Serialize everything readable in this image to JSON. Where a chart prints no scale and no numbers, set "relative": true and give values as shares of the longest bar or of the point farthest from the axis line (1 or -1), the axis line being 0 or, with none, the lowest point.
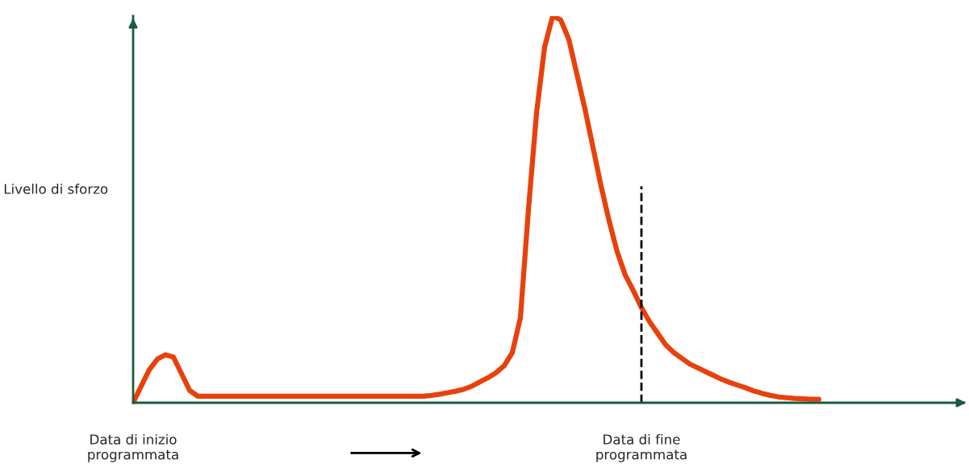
{
  "chart_data": {
    "type": "line",
    "relative": true,
    "ylabel": "Livello di sforzo",
    "categories": [
      "Data di inizio\nprogrammata",
      null,
      null,
      null,
      null,
      null,
      null,
      null,
      null,
      null,
      null,
      null,
      null,
      null,
      null,
      null,
      null,
      null,
      null,
      null,
      null,
      null,
      null,
      null,
      null,
      null,
      null,
      null,
      null,
      null,
      null,
      null,
      null,
      null,
      null,
      null,
      null,
      null,
      null,
      null,
      null,
      null,
      null,
      null,
      null,
      null,
      null,
      null,
      null,
      null,
      null,
      null,
      null,
      null,
      null,
      null,
      null,
      null,
      null,
      null,
      null,
      null,
      null,
      "Data di fine\nprogrammata",
      null,
      null,
      null,
      null,
      null,
      null,
      null,
      null,
      null,
      null,
      null,
      null,
      null,
      null,
      null,
      null,
      null,
      null,
      null,
      null,
      null,
      null,
      null,
      null,
      null,
      null,
      null,
      null,
      null,
      null,
      null,
      null,
      null,
      null,
      null,
      null,
      null,
      null,
      null,
      null
    ],
    "series": [
      {
        "color": "#e8410c",
        "values": [
          0,
          0.043,
          0.085,
          0.113,
          0.124,
          0.118,
          0.075,
          0.032,
          0.017,
          0.017,
          0.017,
          0.017,
          0.017,
          0.017,
          0.017,
          0.017,
          0.017,
          0.017,
          0.017,
          0.017,
          0.017,
          0.017,
          0.017,
          0.017,
          0.017,
          0.017,
          0.017,
          0.017,
          0.017,
          0.017,
          0.017,
          0.017,
          0.017,
          0.017,
          0.017,
          0.017,
          0.017,
          0.019,
          0.022,
          0.026,
          0.03,
          0.035,
          0.043,
          0.054,
          0.065,
          0.078,
          0.096,
          0.13,
          0.22,
          0.5,
          0.75,
          0.92,
          1,
          0.99,
          0.94,
          0.85,
          0.76,
          0.66,
          0.56,
          0.47,
          0.39,
          0.33,
          0.29,
          0.246,
          0.21,
          0.18,
          0.15,
          0.13,
          0.115,
          0.1,
          0.09,
          0.08,
          0.07,
          0.06,
          0.052,
          0.045,
          0.038,
          0.03,
          0.024,
          0.019,
          0.015,
          0.013,
          0.011,
          0.01,
          0.009,
          0.009,
          null,
          null,
          null,
          null,
          null,
          null,
          null,
          null,
          null,
          null,
          null,
          null,
          null,
          null,
          null,
          null,
          null,
          null
        ]
      }
    ],
    "ref_lines": [
      {
        "axis": "x",
        "value": "Data di fine\nprogrammata",
        "color": "#000000",
        "line_style": "dashed"
      }
    ],
    "grid": false,
    "legend": false,
    "marker": "none",
    "line_style": "solid"
  }
}
